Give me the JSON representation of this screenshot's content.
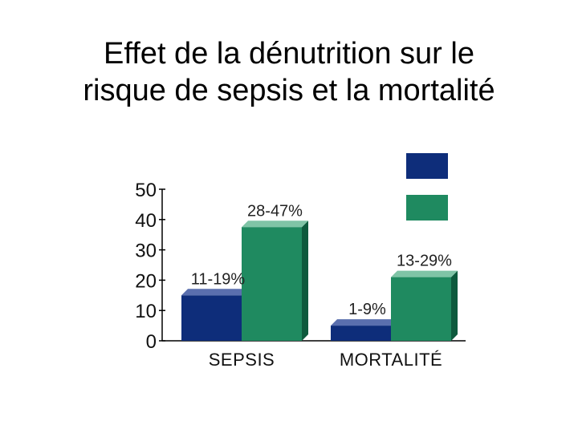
{
  "slide": {
    "title_line1": "Effet de la dénutrition sur le",
    "title_line2": "risque de sepsis et la mortalité"
  },
  "colors": {
    "series_1": "#0e2d7a",
    "series_1_top": "#5a6fae",
    "series_1_side": "#081c52",
    "series_2": "#1f8a60",
    "series_2_top": "#7fc4a6",
    "series_2_side": "#0d5a3d",
    "axis": "#000000"
  },
  "chart_data": {
    "type": "bar",
    "categories": [
      "SEPSIS",
      "MORTALITÉ"
    ],
    "series": [
      {
        "values": [
          15,
          5
        ],
        "labels": [
          "11-19%",
          "1-9%"
        ]
      },
      {
        "values": [
          37.5,
          21
        ],
        "labels": [
          "28-47%",
          "13-29%"
        ]
      }
    ],
    "yticks": [
      0,
      10,
      20,
      30,
      40,
      50
    ],
    "ylim": [
      0,
      50
    ],
    "legend_position": "top-right",
    "grid": false
  }
}
